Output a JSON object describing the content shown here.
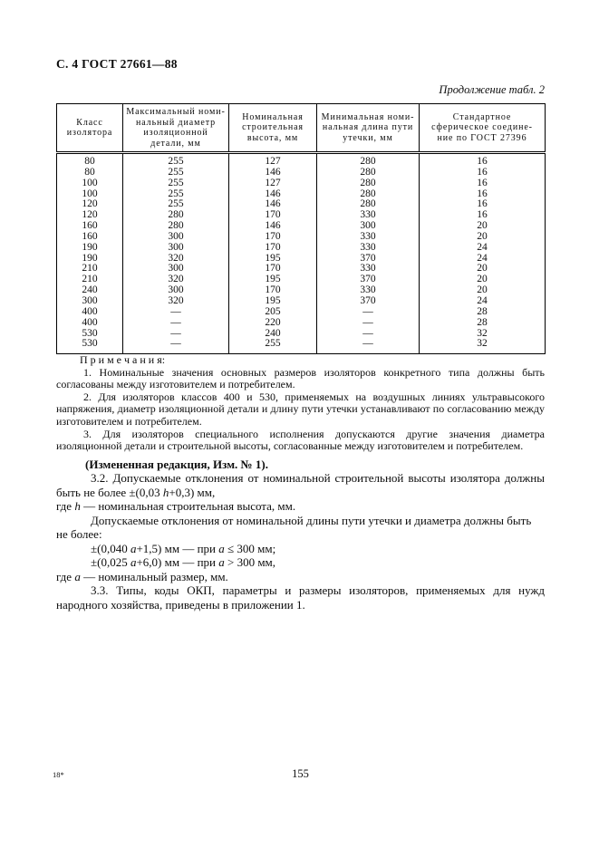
{
  "page": {
    "header_left": "С. 4 ГОСТ 27661—88",
    "table_caption": "Продолжение табл. 2",
    "footer_signature": "18*",
    "page_number": "155"
  },
  "table": {
    "headers": [
      {
        "lines": [
          "Класс",
          "изолятора"
        ]
      },
      {
        "lines": [
          "Максимальный номи-",
          "нальный диаметр",
          "изоляционной",
          "детали, мм"
        ]
      },
      {
        "lines": [
          "Номинальная",
          "строительная",
          "высота, мм"
        ]
      },
      {
        "lines": [
          "Минимальная номи-",
          "нальная длина пути",
          "утечки, мм"
        ]
      },
      {
        "lines": [
          "Стандартное",
          "сферическое соедине-",
          "ние по ГОСТ 27396"
        ]
      }
    ],
    "rows": [
      [
        "80",
        "255",
        "127",
        "280",
        "16"
      ],
      [
        "80",
        "255",
        "146",
        "280",
        "16"
      ],
      [
        "100",
        "255",
        "127",
        "280",
        "16"
      ],
      [
        "100",
        "255",
        "146",
        "280",
        "16"
      ],
      [
        "120",
        "255",
        "146",
        "280",
        "16"
      ],
      [
        "120",
        "280",
        "170",
        "330",
        "16"
      ],
      [
        "160",
        "280",
        "146",
        "300",
        "20"
      ],
      [
        "160",
        "300",
        "170",
        "330",
        "20"
      ],
      [
        "190",
        "300",
        "170",
        "330",
        "24"
      ],
      [
        "190",
        "320",
        "195",
        "370",
        "24"
      ],
      [
        "210",
        "300",
        "170",
        "330",
        "20"
      ],
      [
        "210",
        "320",
        "195",
        "370",
        "20"
      ],
      [
        "240",
        "300",
        "170",
        "330",
        "20"
      ],
      [
        "300",
        "320",
        "195",
        "370",
        "24"
      ],
      [
        "400",
        "—",
        "205",
        "—",
        "28"
      ],
      [
        "400",
        "—",
        "220",
        "—",
        "28"
      ],
      [
        "530",
        "—",
        "240",
        "—",
        "32"
      ],
      [
        "530",
        "—",
        "255",
        "—",
        "32"
      ]
    ]
  },
  "notes": {
    "heading": "П р и м е ч а н и я:",
    "items": [
      "1. Номинальные значения основных размеров изоляторов конкретного типа должны быть согласованы между изготовителем и потребителем.",
      "2. Для изоляторов классов 400 и 530, применяемых на воздушных линиях ультравысокого напряжения, диаметр изоляционной детали и длину пути утечки устанавливают по согласованию между изготовителем и потребителем.",
      "3. Для изоляторов специального исполнения допускаются другие значения диаметра изоляционной детали и строительной высоты, согласованные между изготовителем и потребителем."
    ]
  },
  "body": {
    "paragraphs": [
      {
        "style": "bold-indent",
        "runs": [
          {
            "t": "(Измененная редакция, Изм. № 1)."
          }
        ]
      },
      {
        "style": "indent-justify",
        "runs": [
          {
            "t": "3.2. Допускаемые отклонения от номинальной строительной высоты изолятора должны быть не более ±(0,03 "
          },
          {
            "t": "h",
            "i": true
          },
          {
            "t": "+0,3) мм,"
          }
        ]
      },
      {
        "style": "noindent",
        "runs": [
          {
            "t": "где "
          },
          {
            "t": "h",
            "i": true
          },
          {
            "t": " — номинальная строительная высота, мм."
          }
        ]
      },
      {
        "style": "indent",
        "runs": [
          {
            "t": "Допускаемые отклонения от номинальной длины пути утечки и диаметра должны быть не более:"
          }
        ]
      },
      {
        "style": "indent",
        "runs": [
          {
            "t": "±(0,040 "
          },
          {
            "t": "a",
            "i": true
          },
          {
            "t": "+1,5) мм — при "
          },
          {
            "t": "a",
            "i": true
          },
          {
            "t": " ≤ 300 мм;"
          }
        ]
      },
      {
        "style": "indent",
        "runs": [
          {
            "t": "±(0,025 "
          },
          {
            "t": "a",
            "i": true
          },
          {
            "t": "+6,0) мм — при "
          },
          {
            "t": "a",
            "i": true
          },
          {
            "t": " > 300 мм,"
          }
        ]
      },
      {
        "style": "noindent",
        "runs": [
          {
            "t": "где "
          },
          {
            "t": "a",
            "i": true
          },
          {
            "t": " — номинальный размер, мм."
          }
        ]
      },
      {
        "style": "indent-justify",
        "runs": [
          {
            "t": "3.3. Типы, коды ОКП, параметры и размеры изоляторов, применяемых для нужд народного хозяйства, приведены в приложении 1."
          }
        ]
      }
    ]
  }
}
